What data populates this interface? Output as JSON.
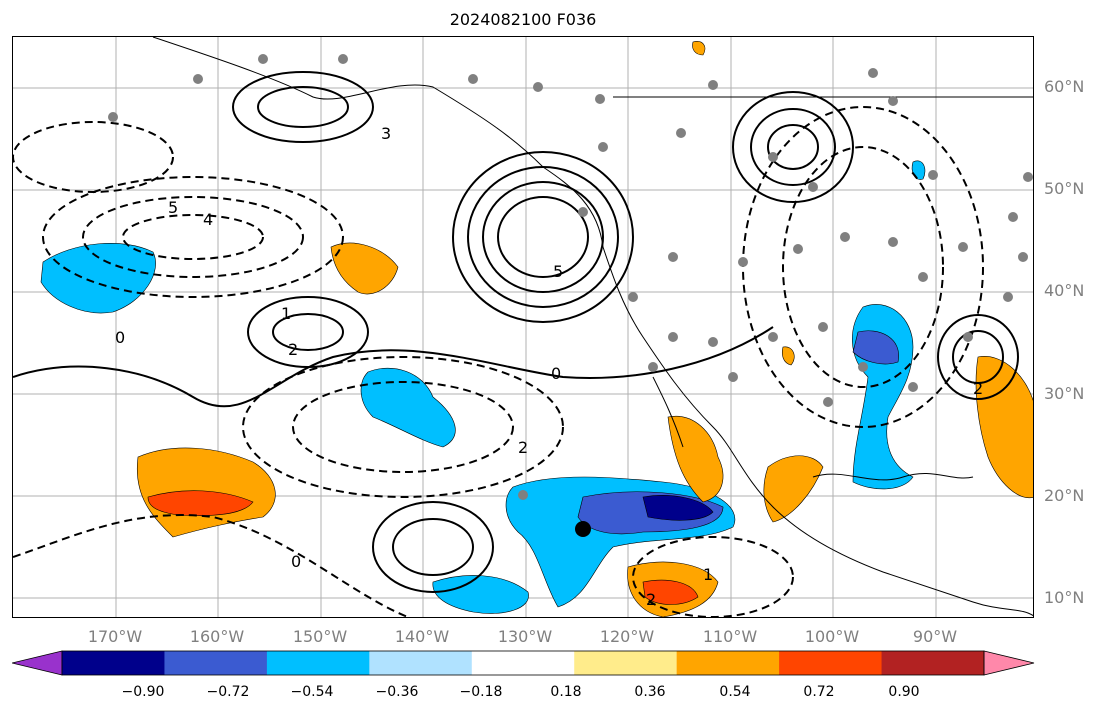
{
  "title": "2024082100 F036",
  "latitude_labels": [
    "60°N",
    "50°N",
    "40°N",
    "30°N",
    "20°N",
    "10°N"
  ],
  "longitude_labels": [
    "170°W",
    "160°W",
    "150°W",
    "140°W",
    "130°W",
    "120°W",
    "110°W",
    "100°W",
    "90°W"
  ],
  "contour_labels": [
    "0",
    "1",
    "2",
    "3",
    "4",
    "5"
  ],
  "colorbar": {
    "tick_labels": [
      "−0.90",
      "−0.72",
      "−0.54",
      "−0.36",
      "−0.18",
      "0.18",
      "0.36",
      "0.54",
      "0.72",
      "0.90"
    ],
    "colors": [
      "#9932cc",
      "#00008b",
      "#3b5bd1",
      "#00bfff",
      "#b0e2ff",
      "#ffffff",
      "#ffec8b",
      "#ffa500",
      "#ff4500",
      "#b22222",
      "#ff88aa"
    ]
  },
  "map_colors": {
    "land": "#000000",
    "grid": "#b0b0b0",
    "stations": "#808080"
  }
}
